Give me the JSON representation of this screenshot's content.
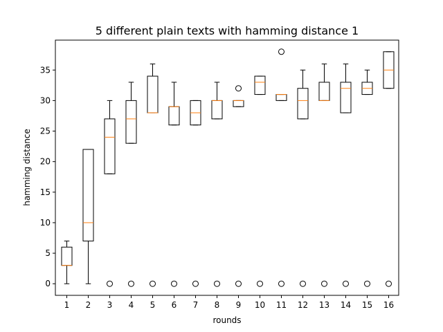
{
  "chart_data": {
    "type": "box",
    "title": "5 different plain texts with hamming distance 1",
    "xlabel": "rounds",
    "ylabel": "hamming distance",
    "ylim": [
      -1.9,
      39.9
    ],
    "yticks": [
      0,
      5,
      10,
      15,
      20,
      25,
      30,
      35
    ],
    "categories": [
      "1",
      "2",
      "3",
      "4",
      "5",
      "6",
      "7",
      "8",
      "9",
      "10",
      "11",
      "12",
      "13",
      "14",
      "15",
      "16"
    ],
    "boxes": [
      {
        "x": "1",
        "whisker_low": 0,
        "q1": 3,
        "median": 3,
        "q3": 6,
        "whisker_high": 7,
        "outliers": []
      },
      {
        "x": "2",
        "whisker_low": 0,
        "q1": 7,
        "median": 10,
        "q3": 22,
        "whisker_high": 22,
        "outliers": []
      },
      {
        "x": "3",
        "whisker_low": 18,
        "q1": 18,
        "median": 24,
        "q3": 27,
        "whisker_high": 30,
        "outliers": [
          0
        ]
      },
      {
        "x": "4",
        "whisker_low": 23,
        "q1": 23,
        "median": 27,
        "q3": 30,
        "whisker_high": 33,
        "outliers": [
          0
        ]
      },
      {
        "x": "5",
        "whisker_low": 28,
        "q1": 28,
        "median": 28,
        "q3": 34,
        "whisker_high": 36,
        "outliers": [
          0
        ]
      },
      {
        "x": "6",
        "whisker_low": 26,
        "q1": 26,
        "median": 29,
        "q3": 29,
        "whisker_high": 33,
        "outliers": [
          0
        ]
      },
      {
        "x": "7",
        "whisker_low": 26,
        "q1": 26,
        "median": 28,
        "q3": 30,
        "whisker_high": 30,
        "outliers": [
          0
        ]
      },
      {
        "x": "8",
        "whisker_low": 27,
        "q1": 27,
        "median": 30,
        "q3": 30,
        "whisker_high": 33,
        "outliers": [
          0
        ]
      },
      {
        "x": "9",
        "whisker_low": 29,
        "q1": 29,
        "median": 30,
        "q3": 30,
        "whisker_high": 30,
        "outliers": [
          0,
          32
        ]
      },
      {
        "x": "10",
        "whisker_low": 31,
        "q1": 31,
        "median": 33,
        "q3": 34,
        "whisker_high": 34,
        "outliers": [
          0
        ]
      },
      {
        "x": "11",
        "whisker_low": 30,
        "q1": 30,
        "median": 31,
        "q3": 31,
        "whisker_high": 31,
        "outliers": [
          0,
          38
        ]
      },
      {
        "x": "12",
        "whisker_low": 27,
        "q1": 27,
        "median": 30,
        "q3": 32,
        "whisker_high": 35,
        "outliers": [
          0
        ]
      },
      {
        "x": "13",
        "whisker_low": 30,
        "q1": 30,
        "median": 30,
        "q3": 33,
        "whisker_high": 36,
        "outliers": [
          0
        ]
      },
      {
        "x": "14",
        "whisker_low": 28,
        "q1": 28,
        "median": 32,
        "q3": 33,
        "whisker_high": 36,
        "outliers": [
          0
        ]
      },
      {
        "x": "15",
        "whisker_low": 31,
        "q1": 31,
        "median": 32,
        "q3": 33,
        "whisker_high": 35,
        "outliers": [
          0
        ]
      },
      {
        "x": "16",
        "whisker_low": 32,
        "q1": 32,
        "median": 35,
        "q3": 38,
        "whisker_high": 38,
        "outliers": [
          0
        ]
      }
    ],
    "grid": false,
    "colors": {
      "box": "#000000",
      "median": "#ff7f0e",
      "outlier": "#000000"
    }
  }
}
